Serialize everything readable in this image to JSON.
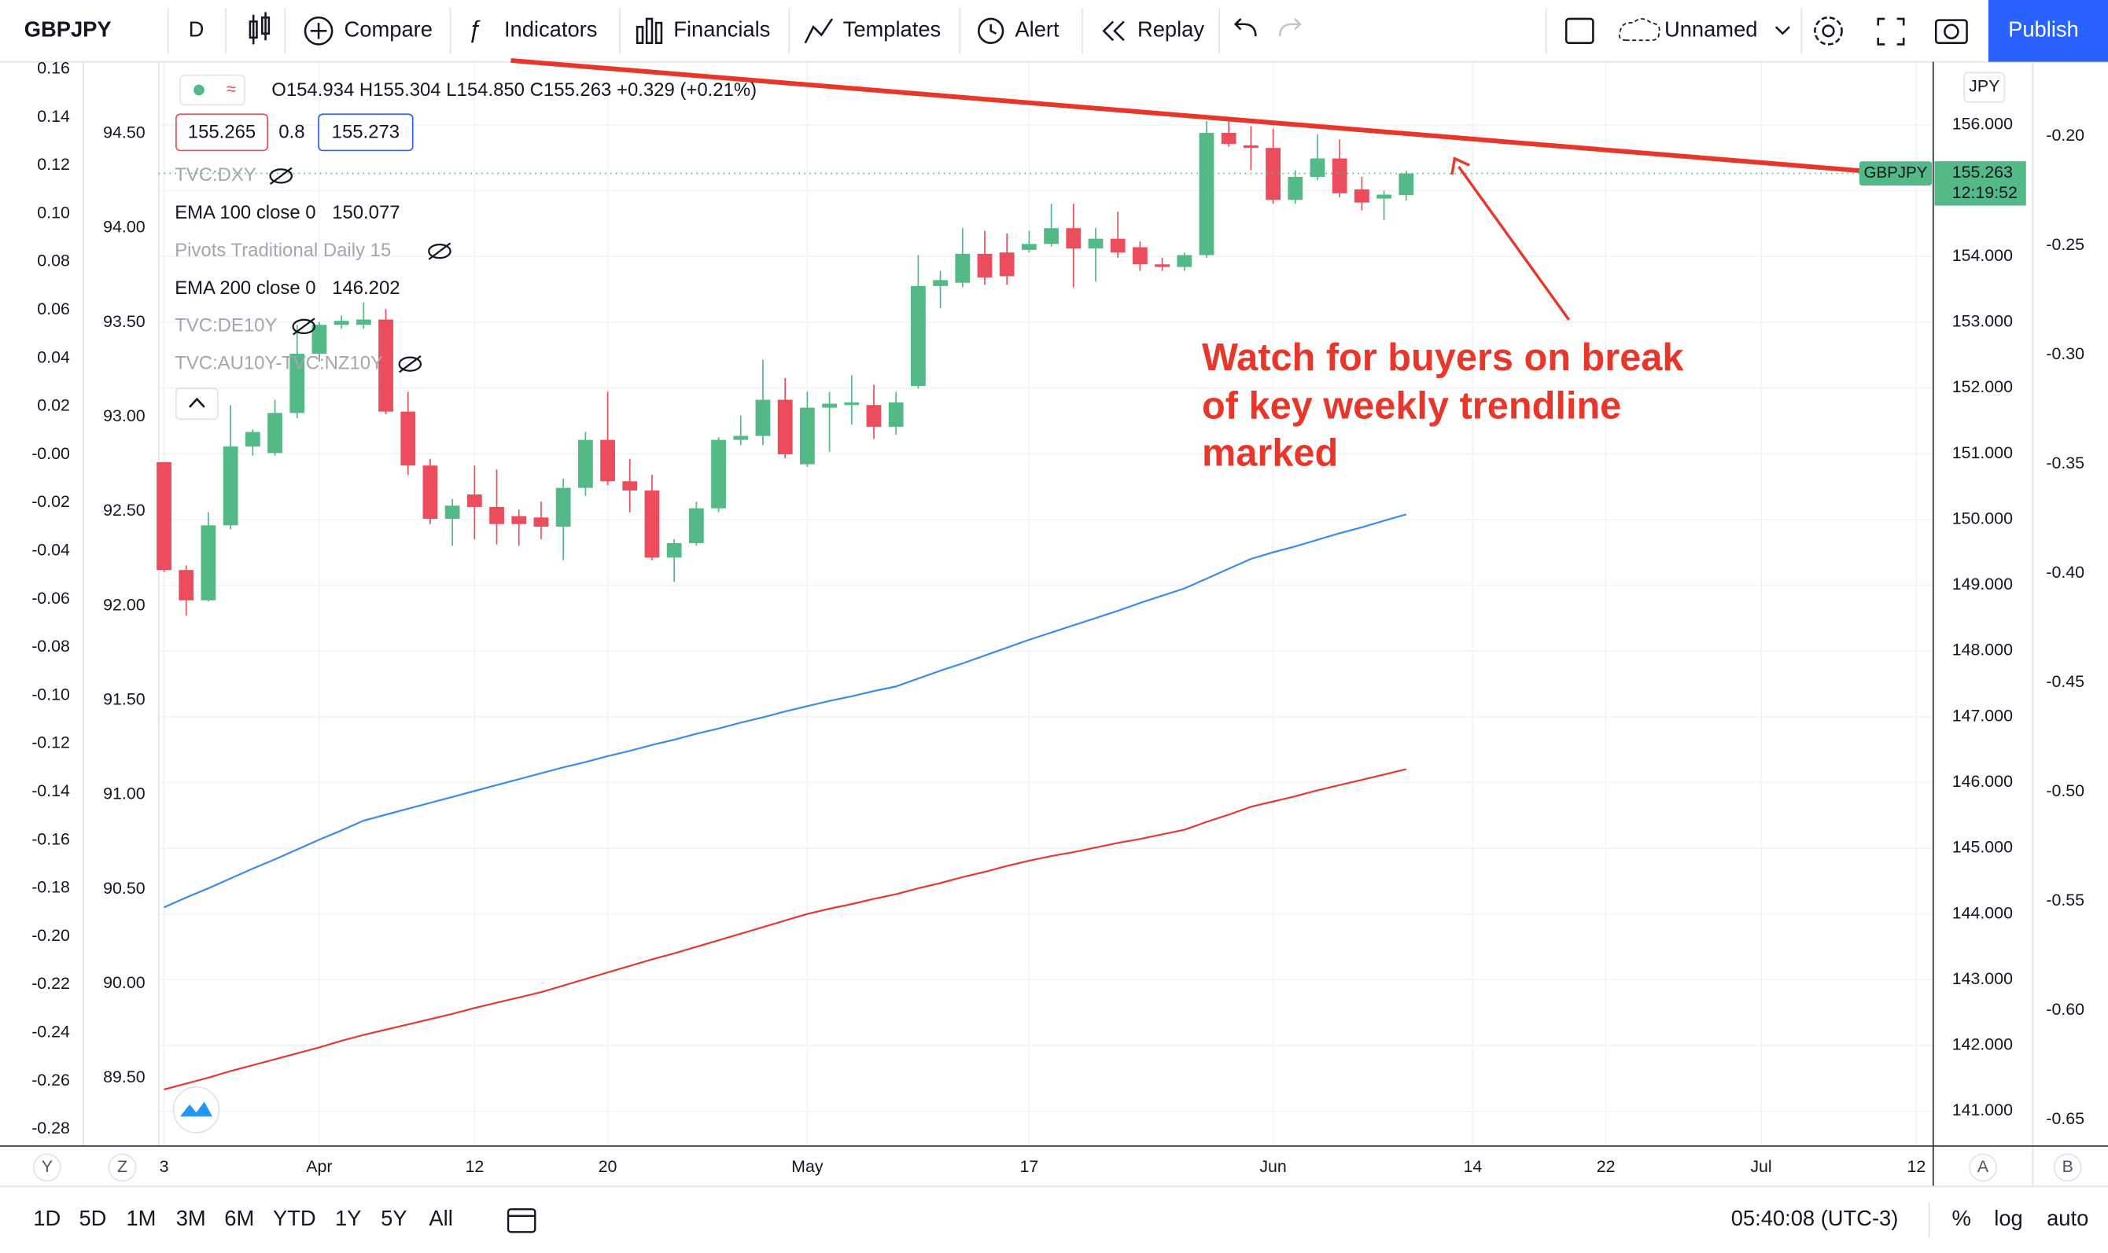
{
  "toolbar": {
    "symbol": "GBPJPY",
    "interval": "D",
    "compare": "Compare",
    "indicators": "Indicators",
    "financials": "Financials",
    "templates": "Templates",
    "alert": "Alert",
    "replay": "Replay",
    "layout": "Unnamed",
    "publish": "Publish"
  },
  "legend": {
    "ohlc": [
      "O154.934",
      "H155.304",
      "L154.850",
      "C155.263"
    ],
    "change": "+0.329 (+0.21%)",
    "bid": "155.265",
    "spread": "0.8",
    "ask": "155.273",
    "hidden": [
      "TVC:DXY",
      "Pivots Traditional Daily 15",
      "TVC:DE10Y",
      "TVC:AU10Y-TVC:NZ10Y"
    ]
  },
  "axis_buttons": [
    "Y",
    "Z",
    "A",
    "B"
  ],
  "bottom_bar": {
    "ranges": [
      "1D",
      "5D",
      "1M",
      "3M",
      "6M",
      "YTD",
      "1Y",
      "5Y",
      "All"
    ],
    "clock": "05:40:08 (UTC-3)",
    "percent": "%",
    "log": "log",
    "auto": "auto"
  },
  "chart_data": {
    "type": "candlestick",
    "currency": "JPY",
    "symbol_label": "GBPJPY",
    "countdown": "12:19:52",
    "annotation": [
      "Watch for buyers on break",
      "of key weekly trendline",
      "marked"
    ],
    "up_color": "#53b987",
    "down_color": "#eb4d5c",
    "grid": true,
    "categories": [
      "3",
      null,
      null,
      null,
      null,
      null,
      null,
      "Apr",
      null,
      null,
      null,
      null,
      null,
      null,
      "12",
      null,
      null,
      null,
      null,
      null,
      "20",
      null,
      null,
      null,
      null,
      null,
      null,
      null,
      null,
      "May",
      null,
      null,
      null,
      null,
      null,
      null,
      null,
      null,
      null,
      "17",
      null,
      null,
      null,
      null,
      null,
      null,
      null,
      null,
      null,
      null,
      "Jun",
      null,
      null,
      null,
      null,
      null,
      null,
      null,
      null,
      "14",
      null,
      null,
      null,
      null,
      null,
      "22",
      null,
      null,
      null,
      null,
      null,
      null,
      "Jul",
      null,
      null,
      null,
      null,
      null,
      null,
      "12"
    ],
    "open": [
      150.87,
      149.23,
      148.77,
      149.91,
      151.11,
      151.01,
      151.62,
      152.52,
      152.96,
      152.96,
      153.04,
      151.64,
      150.82,
      150.01,
      150.38,
      150.19,
      150.05,
      150.03,
      149.89,
      150.48,
      151.21,
      150.58,
      150.44,
      149.42,
      149.64,
      150.17,
      151.21,
      151.27,
      151.82,
      150.84,
      151.7,
      151.74,
      151.74,
      151.41,
      152.03,
      153.55,
      153.6,
      154.04,
      154.06,
      154.1,
      154.19,
      154.43,
      154.12,
      154.27,
      154.14,
      153.88,
      153.84,
      154.02,
      155.88,
      155.69,
      155.65,
      154.86,
      155.21,
      155.49,
      155.02,
      154.88,
      154.934,
      null,
      null,
      null,
      null,
      null,
      null,
      null,
      null,
      null,
      null,
      null,
      null,
      null,
      null,
      null,
      null,
      null,
      null,
      null,
      null,
      null,
      null,
      null
    ],
    "high": [
      150.87,
      149.3,
      150.11,
      151.74,
      151.37,
      151.82,
      152.96,
      153.0,
      153.1,
      153.3,
      153.2,
      151.94,
      150.92,
      150.31,
      150.82,
      150.76,
      150.15,
      150.27,
      150.62,
      151.33,
      151.94,
      150.92,
      150.68,
      149.7,
      150.27,
      151.25,
      151.58,
      152.43,
      152.15,
      151.94,
      151.94,
      152.19,
      152.05,
      151.94,
      154.02,
      153.78,
      154.43,
      154.39,
      154.35,
      154.39,
      154.8,
      154.8,
      154.43,
      154.68,
      154.23,
      153.98,
      154.06,
      156.06,
      156.06,
      155.98,
      155.94,
      155.31,
      155.86,
      155.78,
      155.21,
      155.0,
      155.304,
      null,
      null,
      null,
      null,
      null,
      null,
      null,
      null,
      null,
      null,
      null,
      null,
      null,
      null,
      null,
      null,
      null,
      null,
      null,
      null,
      null,
      null,
      null
    ],
    "low": [
      149.2,
      148.54,
      148.75,
      149.85,
      150.97,
      150.97,
      151.54,
      152.4,
      152.9,
      152.9,
      151.6,
      150.68,
      149.93,
      149.6,
      149.7,
      149.62,
      149.6,
      149.7,
      149.38,
      150.36,
      150.52,
      150.11,
      149.38,
      149.05,
      149.6,
      150.11,
      151.13,
      151.13,
      150.93,
      150.8,
      151.03,
      151.44,
      151.23,
      151.29,
      151.99,
      153.21,
      153.53,
      153.57,
      153.57,
      154.06,
      154.15,
      153.53,
      153.62,
      153.98,
      153.78,
      153.78,
      153.78,
      153.98,
      155.67,
      155.31,
      154.8,
      154.8,
      155.16,
      154.9,
      154.7,
      154.55,
      154.85,
      null,
      null,
      null,
      null,
      null,
      null,
      null,
      null,
      null,
      null,
      null,
      null,
      null,
      null,
      null,
      null,
      null,
      null,
      null,
      null,
      null,
      null,
      null
    ],
    "close": [
      149.23,
      148.77,
      149.91,
      151.11,
      151.33,
      151.62,
      152.52,
      152.96,
      153.02,
      153.04,
      151.64,
      150.82,
      150.01,
      150.21,
      150.19,
      149.93,
      149.93,
      149.89,
      150.48,
      151.21,
      150.58,
      150.44,
      149.42,
      149.64,
      150.17,
      151.21,
      151.27,
      151.82,
      150.99,
      151.7,
      151.76,
      151.78,
      151.41,
      151.78,
      153.55,
      153.64,
      154.04,
      153.68,
      153.7,
      154.19,
      154.43,
      154.12,
      154.27,
      154.06,
      153.88,
      153.84,
      154.02,
      155.88,
      155.71,
      155.65,
      154.86,
      155.21,
      155.49,
      154.96,
      154.82,
      154.94,
      155.263,
      null,
      null,
      null,
      null,
      null,
      null,
      null,
      null,
      null,
      null,
      null,
      null,
      null,
      null,
      null,
      null,
      null,
      null,
      null,
      null,
      null,
      null,
      null
    ],
    "series": [
      {
        "name": "EMA 100 close 0",
        "color": "#3a8ee6",
        "values": [
          144.1,
          144.25,
          144.39,
          144.54,
          144.69,
          144.83,
          144.98,
          145.13,
          145.27,
          145.42,
          145.51,
          145.6,
          145.69,
          145.78,
          145.87,
          145.96,
          146.05,
          146.14,
          146.23,
          146.31,
          146.4,
          146.48,
          146.57,
          146.65,
          146.74,
          146.82,
          146.91,
          146.99,
          147.08,
          147.16,
          147.24,
          147.31,
          147.39,
          147.46,
          147.58,
          147.7,
          147.81,
          147.93,
          148.05,
          148.17,
          148.28,
          148.39,
          148.5,
          148.61,
          148.73,
          148.84,
          148.95,
          149.1,
          149.25,
          149.4,
          149.5,
          149.59,
          149.69,
          149.79,
          149.88,
          149.98,
          150.077,
          null,
          null,
          null,
          null,
          null,
          null,
          null,
          null,
          null,
          null,
          null,
          null,
          null,
          null,
          null,
          null,
          null,
          null,
          null,
          null,
          null,
          null,
          null
        ]
      },
      {
        "name": "EMA 200 close 0",
        "color": "#e53935",
        "values": [
          141.33,
          141.42,
          141.51,
          141.61,
          141.7,
          141.79,
          141.88,
          141.97,
          142.07,
          142.16,
          142.24,
          142.32,
          142.4,
          142.48,
          142.57,
          142.65,
          142.73,
          142.81,
          142.91,
          143.01,
          143.11,
          143.21,
          143.31,
          143.4,
          143.5,
          143.6,
          143.7,
          143.8,
          143.9,
          144.0,
          144.08,
          144.15,
          144.23,
          144.3,
          144.39,
          144.47,
          144.56,
          144.64,
          144.73,
          144.81,
          144.88,
          144.94,
          145.01,
          145.08,
          145.14,
          145.21,
          145.28,
          145.4,
          145.51,
          145.63,
          145.71,
          145.79,
          145.88,
          145.96,
          146.04,
          146.12,
          146.202,
          null,
          null,
          null,
          null,
          null,
          null,
          null,
          null,
          null,
          null,
          null,
          null,
          null,
          null,
          null,
          null,
          null,
          null,
          null,
          null,
          null,
          null,
          null
        ]
      }
    ],
    "ylim": [
      140.47,
      156.96
    ],
    "yticks": [
      {
        "value": 156,
        "label": "156.000"
      },
      {
        "value": 155,
        "label": "155.000"
      },
      {
        "value": 154,
        "label": "154.000"
      },
      {
        "value": 153,
        "label": "153.000"
      },
      {
        "value": 152,
        "label": "152.000"
      },
      {
        "value": 151,
        "label": "151.000"
      },
      {
        "value": 150,
        "label": "150.000"
      },
      {
        "value": 149,
        "label": "149.000"
      },
      {
        "value": 148,
        "label": "148.000"
      },
      {
        "value": 147,
        "label": "147.000"
      },
      {
        "value": 146,
        "label": "146.000"
      },
      {
        "value": 145,
        "label": "145.000"
      },
      {
        "value": 144,
        "label": "144.000"
      },
      {
        "value": 143,
        "label": "143.000"
      },
      {
        "value": 142,
        "label": "142.000"
      },
      {
        "value": 141,
        "label": "141.000"
      }
    ],
    "y2lim": [
      89.14,
      94.88
    ],
    "y2ticks": [
      {
        "value": 94.5,
        "label": "94.50"
      },
      {
        "value": 94,
        "label": "94.00"
      },
      {
        "value": 93.5,
        "label": "93.50"
      },
      {
        "value": 93,
        "label": "93.00"
      },
      {
        "value": 92.5,
        "label": "92.50"
      },
      {
        "value": 92,
        "label": "92.00"
      },
      {
        "value": 91.5,
        "label": "91.50"
      },
      {
        "value": 91,
        "label": "91.00"
      },
      {
        "value": 90.5,
        "label": "90.50"
      },
      {
        "value": 90,
        "label": "90.00"
      },
      {
        "value": 89.5,
        "label": "89.50"
      }
    ],
    "y3lim": [
      -0.287,
      0.163
    ],
    "y3ticks": [
      0.16,
      0.14,
      0.12,
      {
        "value": 0.1,
        "label": "0.10"
      },
      0.08,
      0.06,
      0.04,
      0.02,
      {
        "value": 0,
        "label": "-0.00"
      },
      -0.02,
      -0.04,
      -0.06,
      -0.08,
      {
        "value": -0.1,
        "label": "-0.10"
      },
      -0.12,
      -0.14,
      -0.16,
      -0.18,
      {
        "value": -0.2,
        "label": "-0.20"
      },
      -0.22,
      -0.24,
      -0.26,
      -0.28
    ],
    "y4lim": [
      -0.662,
      -0.166
    ],
    "y4ticks": [
      {
        "value": -0.2,
        "label": "-0.20"
      },
      -0.25,
      {
        "value": -0.3,
        "label": "-0.30"
      },
      -0.35,
      {
        "value": -0.4,
        "label": "-0.40"
      },
      -0.45,
      {
        "value": -0.5,
        "label": "-0.50"
      },
      -0.55,
      {
        "value": -0.6,
        "label": "-0.60"
      },
      -0.65
    ]
  }
}
